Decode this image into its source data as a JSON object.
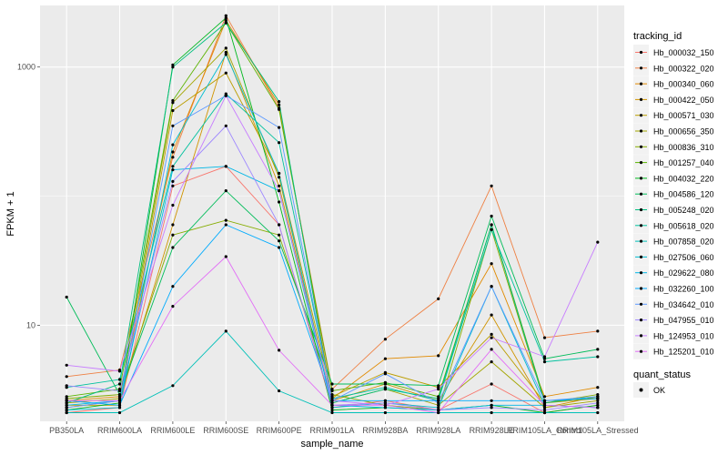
{
  "chart_data": {
    "type": "line",
    "xlabel": "sample_name",
    "ylabel": "FPKM + 1",
    "y_scale": "log10",
    "ylim": [
      1.8,
      3000
    ],
    "y_ticks": [
      10,
      1000
    ],
    "y_tick_labels": [
      "10",
      "1000"
    ],
    "categories": [
      "PB350LA",
      "RRIM600LA",
      "RRIM600LE",
      "RRIM600SE",
      "RRIM600PE",
      "RRIM901LA",
      "RRIM928BA",
      "RRIM928LA",
      "RRIM928LE",
      "RRIM105LA_Control",
      "RRIM105LA_Stressed"
    ],
    "grid": true,
    "legend_title": "tracking_id",
    "legend_position": "right",
    "series": [
      {
        "name": "Hb_000032_150",
        "color": "#F8766D",
        "values": [
          2.1,
          2.3,
          120,
          170,
          60,
          2.3,
          2.6,
          2.2,
          3.5,
          2.1,
          2.4
        ]
      },
      {
        "name": "Hb_000322_020",
        "color": "#EE8043",
        "values": [
          4,
          4.5,
          200,
          2500,
          480,
          3.2,
          7.8,
          16,
          120,
          8,
          9
        ]
      },
      {
        "name": "Hb_000340_060",
        "color": "#E18A00",
        "values": [
          2.6,
          2.8,
          220,
          2300,
          510,
          2.7,
          5.5,
          5.8,
          30,
          2.8,
          3.3
        ]
      },
      {
        "name": "Hb_000422_050",
        "color": "#D09400",
        "values": [
          2.3,
          2.6,
          60,
          1300,
          120,
          2.6,
          3.5,
          2.6,
          12,
          2.3,
          2.8
        ]
      },
      {
        "name": "Hb_000571_030",
        "color": "#BB9D00",
        "values": [
          2.4,
          2.4,
          460,
          900,
          150,
          2.8,
          4.3,
          3.3,
          8.5,
          2.5,
          2.7
        ]
      },
      {
        "name": "Hb_000656_350",
        "color": "#A3A500",
        "values": [
          2.5,
          2.7,
          530,
          1400,
          140,
          2.5,
          3.2,
          2.4,
          5.2,
          2.3,
          2.6
        ]
      },
      {
        "name": "Hb_000836_310",
        "color": "#85AC00",
        "values": [
          2.7,
          2.9,
          50,
          65,
          50,
          2.9,
          2.4,
          2.2,
          55,
          2.5,
          2.9
        ]
      },
      {
        "name": "Hb_001257_040",
        "color": "#5BB300",
        "values": [
          2.8,
          3.2,
          550,
          2200,
          470,
          3.1,
          3.6,
          2.8,
          60,
          2.6,
          2.7
        ]
      },
      {
        "name": "Hb_004032_220",
        "color": "#00B81F",
        "values": [
          2.2,
          2.5,
          1040,
          2400,
          90,
          2.2,
          2.3,
          2.2,
          2.4,
          2.1,
          2.4
        ]
      },
      {
        "name": "Hb_004586_120",
        "color": "#00BC59",
        "values": [
          16.5,
          2.9,
          40,
          110,
          45,
          3.5,
          3.5,
          3.4,
          70,
          5.5,
          6.5
        ]
      },
      {
        "name": "Hb_005248_020",
        "color": "#00BF7F",
        "values": [
          2.5,
          3.5,
          1000,
          2200,
          540,
          2.5,
          3.2,
          2.7,
          60,
          2.5,
          2.8
        ]
      },
      {
        "name": "Hb_005618_020",
        "color": "#00C19E",
        "values": [
          3.3,
          3.8,
          170,
          620,
          260,
          2.7,
          3.3,
          2.6,
          55,
          5.2,
          5.7
        ]
      },
      {
        "name": "Hb_007858_020",
        "color": "#00C0B8",
        "values": [
          2.1,
          2.1,
          3.4,
          9,
          3.1,
          2.1,
          2.1,
          2.1,
          2.1,
          2.1,
          2.1
        ]
      },
      {
        "name": "Hb_027506_060",
        "color": "#00BDD0",
        "values": [
          2.2,
          2.3,
          250,
          1250,
          150,
          2.3,
          2.5,
          2.3,
          20,
          2.4,
          2.3
        ]
      },
      {
        "name": "Hb_029622_080",
        "color": "#00B6E5",
        "values": [
          2.4,
          2.6,
          160,
          170,
          110,
          2.4,
          2.3,
          2.2,
          2.4,
          2.4,
          2.3
        ]
      },
      {
        "name": "Hb_032260_100",
        "color": "#00ABFD",
        "values": [
          2.6,
          2.4,
          20,
          60,
          40,
          2.6,
          2.6,
          2.6,
          2.6,
          2.6,
          2.7
        ]
      },
      {
        "name": "Hb_034642_010",
        "color": "#5C99FF",
        "values": [
          2.3,
          2.6,
          350,
          600,
          340,
          2.6,
          4.2,
          2.5,
          20,
          2.6,
          2.8
        ]
      },
      {
        "name": "Hb_047955_010",
        "color": "#9E87FF",
        "values": [
          3.4,
          3.1,
          130,
          350,
          60,
          2.4,
          2.5,
          2.2,
          2.3,
          2.2,
          2.5
        ]
      },
      {
        "name": "Hb_124953_010",
        "color": "#C77CFF",
        "values": [
          4.9,
          4.4,
          85,
          600,
          110,
          2.6,
          2.4,
          3.2,
          8,
          5.7,
          44
        ]
      },
      {
        "name": "Hb_125201_010",
        "color": "#E26EF6",
        "values": [
          2.6,
          2.6,
          14,
          34,
          6.4,
          2.4,
          2.4,
          2.1,
          6.5,
          2.4,
          2.3
        ]
      }
    ],
    "legend2_title": "quant_status",
    "legend2_entries": [
      "OK"
    ]
  }
}
